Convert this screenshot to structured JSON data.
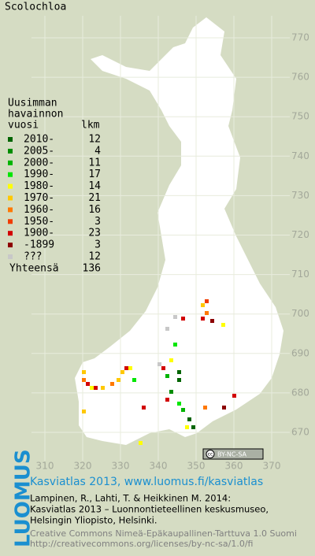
{
  "title": "Scolochloa",
  "grid": {
    "xticks": [
      310,
      320,
      330,
      340,
      350,
      360,
      370
    ],
    "yticks": [
      670,
      680,
      690,
      700,
      710,
      720,
      730,
      740,
      750,
      760,
      770
    ]
  },
  "legend": {
    "header": [
      "Uusimman",
      "havainnon",
      "vuosi"
    ],
    "count_header": "lkm",
    "rows": [
      {
        "label": "2010-",
        "count": 12,
        "color": "#006400"
      },
      {
        "label": "2005-",
        "count": 4,
        "color": "#008c00"
      },
      {
        "label": "2000-",
        "count": 11,
        "color": "#00b400"
      },
      {
        "label": "1990-",
        "count": 17,
        "color": "#00e600"
      },
      {
        "label": "1980-",
        "count": 14,
        "color": "#ffff00"
      },
      {
        "label": "1970-",
        "count": 21,
        "color": "#ffc800"
      },
      {
        "label": "1960-",
        "count": 16,
        "color": "#ff7800"
      },
      {
        "label": "1950-",
        "count": 3,
        "color": "#f03c00"
      },
      {
        "label": "1900-",
        "count": 23,
        "color": "#d20000"
      },
      {
        "label": "-1899",
        "count": 3,
        "color": "#8c0000"
      },
      {
        "label": "???",
        "count": 12,
        "color": "#c8c8c8"
      }
    ],
    "total": {
      "label": "Yhteensä",
      "count": 136
    }
  },
  "badge": {
    "cc": "cc",
    "license": "BY-NC-SA"
  },
  "footer": {
    "logo": "LUOMUS",
    "heading": "Kasviatlas 2013, www.luomus.fi/kasviatlas",
    "citation": [
      "Lampinen, R., Lahti, T. & Heikkinen M. 2014:",
      "Kasviatlas 2013 – Luonnontieteellinen keskusmuseo,",
      "Helsingin Yliopisto, Helsinki."
    ],
    "license": [
      "Creative Commons Nimeä-Epäkaupallinen-Tarttuva 1.0 Suomi",
      "http://creativecommons.org/licenses/by-nc-sa/1.0/fi"
    ]
  }
}
